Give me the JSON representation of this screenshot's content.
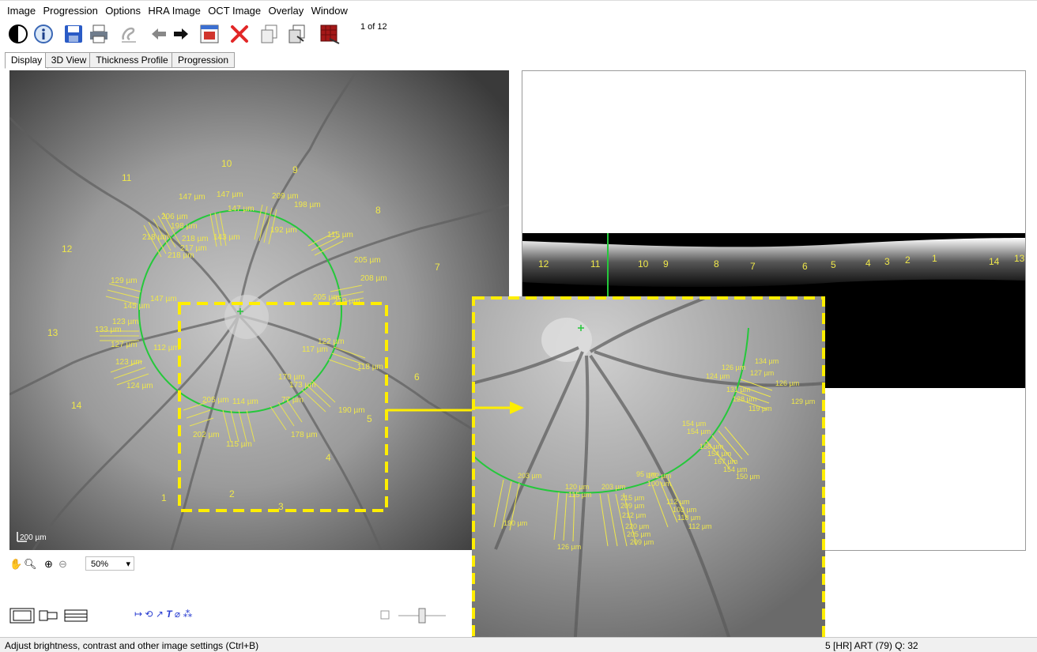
{
  "menu": [
    "Image",
    "Progression",
    "Options",
    "HRA Image",
    "OCT Image",
    "Overlay",
    "Window"
  ],
  "toolbar": {
    "icons": [
      "contrast-icon",
      "info-icon",
      "save-icon",
      "print-icon",
      "edit-icon",
      "back-arrow-icon",
      "forward-arrow-icon",
      "import-icon",
      "delete-icon",
      "copy-icon",
      "copy-all-icon",
      "export-icon"
    ],
    "page_count": "1 of 12"
  },
  "tabs": [
    "Display",
    "3D View",
    "Thickness Profile",
    "Progression"
  ],
  "active_tab": "Display",
  "fundus": {
    "scale_bar": "200 µm",
    "sector_numbers": [
      "1",
      "2",
      "3",
      "4",
      "5",
      "6",
      "7",
      "8",
      "9",
      "10",
      "11",
      "12",
      "13",
      "14"
    ],
    "thickness_labels": [
      "147 µm",
      "147 µm",
      "147 µm",
      "209 µm",
      "198 µm",
      "206 µm",
      "198 µm",
      "218 µm",
      "218 µm",
      "217 µm",
      "218 µm",
      "143 µm",
      "192 µm",
      "115 µm",
      "205 µm",
      "208 µm",
      "129 µm",
      "147 µm",
      "145 µm",
      "133 µm",
      "123 µm",
      "127 µm",
      "123 µm",
      "124 µm",
      "112 µm",
      "122 µm",
      "117 µm",
      "118 µm",
      "170 µm",
      "173 µm",
      "190 µm",
      "205 µm",
      "114 µm",
      "77 µm",
      "202 µm",
      "115 µm",
      "178 µm",
      "205 µm",
      "210 µm"
    ]
  },
  "oct": {
    "sector_numbers": [
      "12",
      "11",
      "10",
      "9",
      "8",
      "7",
      "6",
      "5",
      "4",
      "3",
      "2",
      "1",
      "14",
      "13"
    ]
  },
  "zoomed": {
    "thickness_labels": [
      "126 µm",
      "134 µm",
      "127 µm",
      "124 µm",
      "126 µm",
      "131 µm",
      "128 µm",
      "119 µm",
      "129 µm",
      "154 µm",
      "154 µm",
      "158 µm",
      "154 µm",
      "167 µm",
      "154 µm",
      "150 µm",
      "203 µm",
      "120 µm",
      "203 µm",
      "95 µm",
      "102 µm",
      "100 µm",
      "115 µm",
      "215 µm",
      "209 µm",
      "212 µm",
      "112 µm",
      "103 µm",
      "118 µm",
      "112 µm",
      "220 µm",
      "205 µm",
      "209 µm",
      "190 µm",
      "126 µm"
    ]
  },
  "zoom": {
    "level": "50%"
  },
  "status": {
    "left": "Adjust brightness, contrast and other image settings (Ctrl+B)",
    "right": "5 [HR] ART (79) Q: 32"
  },
  "colors": {
    "overlay_yellow": "#f0e84a",
    "circle_green": "#25c83b",
    "highlight_yellow": "#ffee00"
  }
}
